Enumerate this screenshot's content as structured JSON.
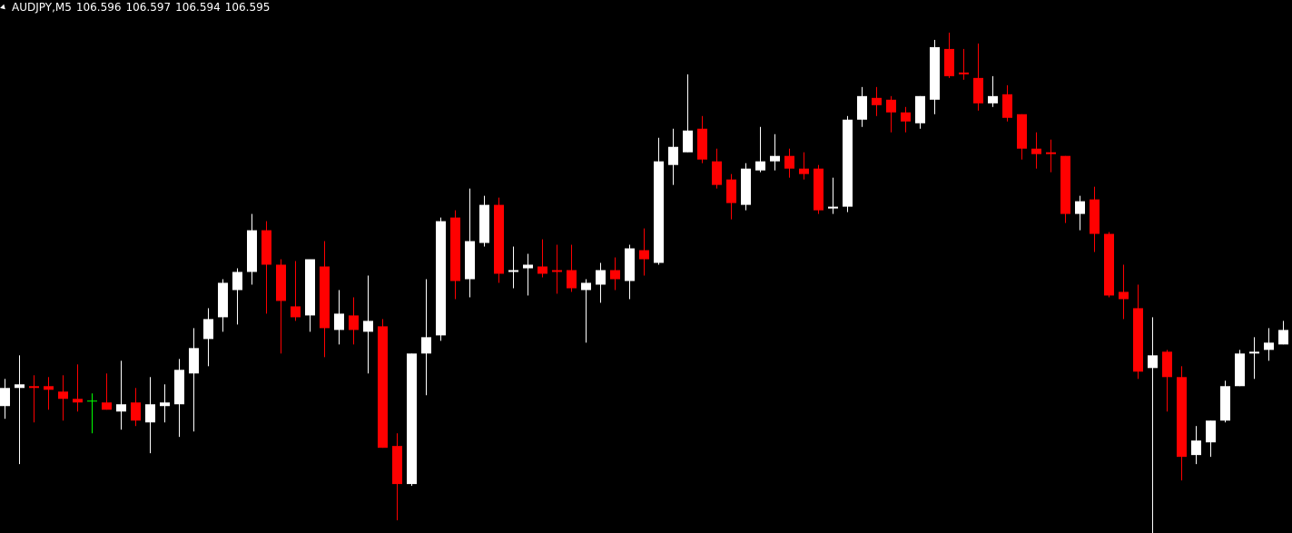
{
  "header": {
    "symbol": "AUDJPY,M5",
    "open": "106.596",
    "high": "106.597",
    "low": "106.594",
    "close": "106.595"
  },
  "chart_data": {
    "type": "candlestick",
    "ylim": [
      106.486,
      106.78
    ],
    "grid": false,
    "colors": {
      "bull": "#FFFFFF",
      "bear": "#FF0000",
      "doji": "#00FF00",
      "background": "#000000"
    },
    "fields": [
      "open",
      "high",
      "low",
      "close"
    ],
    "candles": [
      [
        106.556,
        106.571,
        106.549,
        106.566
      ],
      [
        106.566,
        106.584,
        106.524,
        106.568
      ],
      [
        106.567,
        106.573,
        106.547,
        106.566
      ],
      [
        106.567,
        106.572,
        106.554,
        106.565
      ],
      [
        106.564,
        106.573,
        106.548,
        106.56
      ],
      [
        106.56,
        106.579,
        106.553,
        106.558
      ],
      [
        106.559,
        106.563,
        106.541,
        106.559
      ],
      [
        106.558,
        106.574,
        106.554,
        106.554
      ],
      [
        106.553,
        106.581,
        106.543,
        106.557
      ],
      [
        106.558,
        106.566,
        106.545,
        106.548
      ],
      [
        106.547,
        106.572,
        106.53,
        106.557
      ],
      [
        106.556,
        106.568,
        106.547,
        106.558
      ],
      [
        106.557,
        106.582,
        106.539,
        106.576
      ],
      [
        106.574,
        106.599,
        106.542,
        106.588
      ],
      [
        106.593,
        106.61,
        106.578,
        106.604
      ],
      [
        106.605,
        106.626,
        106.597,
        106.624
      ],
      [
        106.62,
        106.632,
        106.601,
        106.63
      ],
      [
        106.63,
        106.662,
        106.623,
        106.653
      ],
      [
        106.653,
        106.658,
        106.607,
        106.634
      ],
      [
        106.634,
        106.637,
        106.585,
        106.614
      ],
      [
        106.611,
        106.636,
        106.603,
        106.605
      ],
      [
        106.606,
        106.637,
        106.597,
        106.637
      ],
      [
        106.633,
        106.647,
        106.583,
        106.599
      ],
      [
        106.598,
        106.62,
        106.59,
        106.607
      ],
      [
        106.606,
        106.616,
        106.59,
        106.598
      ],
      [
        106.597,
        106.628,
        106.574,
        106.603
      ],
      [
        106.6,
        106.604,
        106.533,
        106.533
      ],
      [
        106.534,
        106.541,
        106.493,
        106.513
      ],
      [
        106.513,
        106.585,
        106.512,
        106.585
      ],
      [
        106.585,
        106.626,
        106.562,
        106.594
      ],
      [
        106.595,
        106.66,
        106.592,
        106.658
      ],
      [
        106.66,
        106.664,
        106.615,
        106.625
      ],
      [
        106.626,
        106.676,
        106.616,
        106.647
      ],
      [
        106.646,
        106.672,
        106.644,
        106.667
      ],
      [
        106.667,
        106.671,
        106.624,
        106.629
      ],
      [
        106.63,
        106.644,
        106.621,
        106.631
      ],
      [
        106.632,
        106.64,
        106.617,
        106.634
      ],
      [
        106.633,
        106.648,
        106.627,
        106.629
      ],
      [
        106.631,
        106.645,
        106.618,
        106.63
      ],
      [
        106.631,
        106.645,
        106.619,
        106.621
      ],
      [
        106.62,
        106.626,
        106.591,
        106.624
      ],
      [
        106.623,
        106.635,
        106.613,
        106.631
      ],
      [
        106.631,
        106.638,
        106.62,
        106.626
      ],
      [
        106.625,
        106.645,
        106.615,
        106.643
      ],
      [
        106.642,
        106.654,
        106.628,
        106.637
      ],
      [
        106.635,
        106.704,
        106.634,
        106.691
      ],
      [
        106.689,
        106.709,
        106.678,
        106.699
      ],
      [
        106.696,
        106.739,
        106.696,
        106.708
      ],
      [
        106.709,
        106.716,
        106.69,
        106.692
      ],
      [
        106.691,
        106.698,
        106.676,
        106.678
      ],
      [
        106.681,
        106.684,
        106.659,
        106.668
      ],
      [
        106.667,
        106.69,
        106.664,
        106.687
      ],
      [
        106.686,
        106.71,
        106.685,
        106.691
      ],
      [
        106.691,
        106.706,
        106.686,
        106.694
      ],
      [
        106.694,
        106.698,
        106.682,
        106.687
      ],
      [
        106.687,
        106.696,
        106.681,
        106.684
      ],
      [
        106.687,
        106.689,
        106.662,
        106.664
      ],
      [
        106.665,
        106.682,
        106.662,
        106.666
      ],
      [
        106.666,
        106.716,
        106.663,
        106.714
      ],
      [
        106.714,
        106.732,
        106.71,
        106.727
      ],
      [
        106.726,
        106.732,
        106.716,
        106.722
      ],
      [
        106.725,
        106.727,
        106.707,
        106.718
      ],
      [
        106.718,
        106.721,
        106.707,
        106.713
      ],
      [
        106.712,
        106.727,
        106.709,
        106.727
      ],
      [
        106.725,
        106.758,
        106.717,
        106.754
      ],
      [
        106.753,
        106.762,
        106.737,
        106.738
      ],
      [
        106.74,
        106.753,
        106.736,
        106.739
      ],
      [
        106.737,
        106.756,
        106.719,
        106.723
      ],
      [
        106.723,
        106.738,
        106.721,
        106.727
      ],
      [
        106.728,
        106.733,
        106.713,
        106.715
      ],
      [
        106.717,
        106.717,
        106.692,
        106.698
      ],
      [
        106.698,
        106.707,
        106.687,
        106.695
      ],
      [
        106.696,
        106.703,
        106.685,
        106.695
      ],
      [
        106.694,
        106.694,
        106.657,
        106.662
      ],
      [
        106.662,
        106.672,
        106.653,
        106.669
      ],
      [
        106.67,
        106.677,
        106.641,
        106.651
      ],
      [
        106.651,
        106.652,
        106.616,
        106.617
      ],
      [
        106.619,
        106.634,
        106.604,
        106.615
      ],
      [
        106.61,
        106.623,
        106.571,
        106.575
      ],
      [
        106.577,
        106.605,
        106.486,
        106.584
      ],
      [
        106.586,
        106.587,
        106.553,
        106.572
      ],
      [
        106.572,
        106.578,
        106.515,
        106.528
      ],
      [
        106.529,
        106.545,
        106.524,
        106.537
      ],
      [
        106.536,
        106.548,
        106.528,
        106.548
      ],
      [
        106.548,
        106.57,
        106.547,
        106.567
      ],
      [
        106.567,
        106.587,
        106.567,
        106.585
      ],
      [
        106.585,
        106.594,
        106.571,
        106.586
      ],
      [
        106.587,
        106.599,
        106.581,
        106.591
      ],
      [
        106.59,
        106.603,
        106.59,
        106.598
      ]
    ]
  }
}
